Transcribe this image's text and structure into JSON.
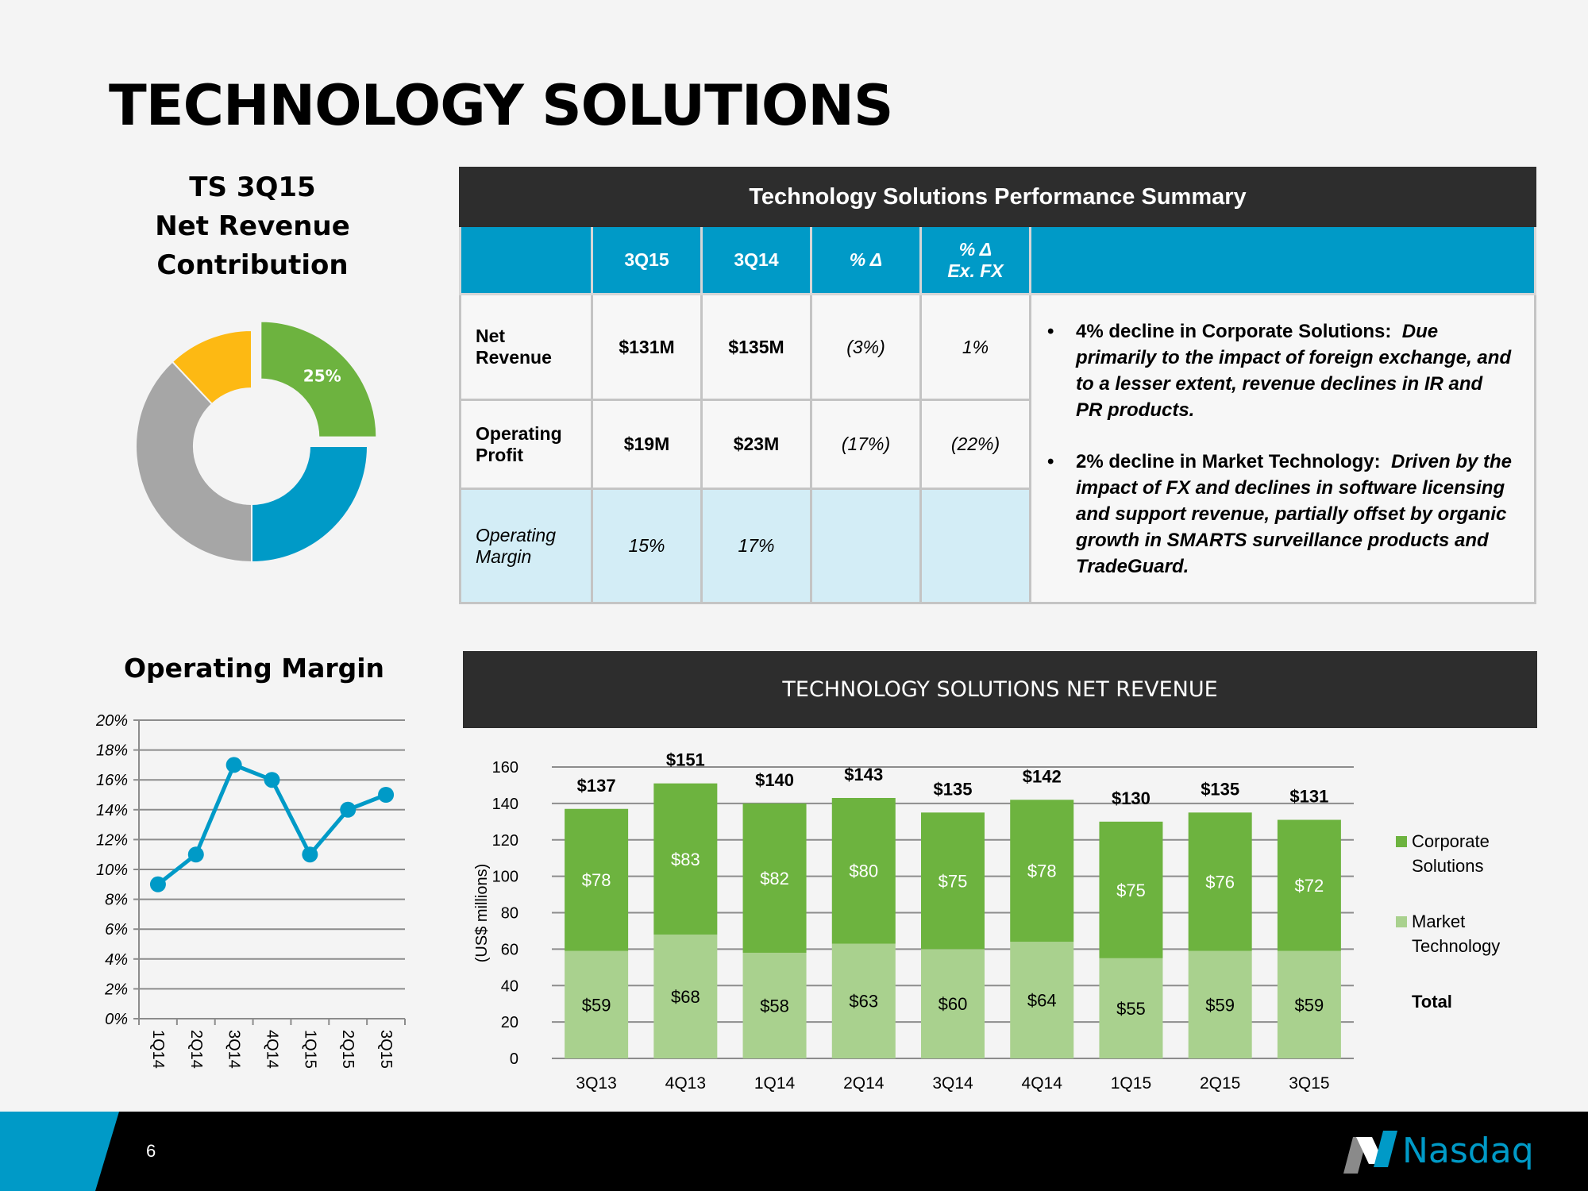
{
  "slide": {
    "title": "TECHNOLOGY SOLUTIONS",
    "page_number": "6",
    "brand": "Nasdaq"
  },
  "donut": {
    "title_lines": [
      "TS 3Q15",
      "Net Revenue",
      "Contribution"
    ]
  },
  "operating_margin": {
    "title": "Operating Margin"
  },
  "table": {
    "title": "Technology Solutions Performance Summary",
    "headers": {
      "c1": "3Q15",
      "c2": "3Q14",
      "c3": "% Δ",
      "c4a": "% Δ",
      "c4b": "Ex. FX"
    },
    "rows": [
      {
        "label_a": "Net",
        "label_b": "Revenue",
        "v1": "$131M",
        "v2": "$135M",
        "v3": "(3%)",
        "v4": "1%"
      },
      {
        "label_a": "Operating",
        "label_b": "Profit",
        "v1": "$19M",
        "v2": "$23M",
        "v3": "(17%)",
        "v4": "(22%)"
      },
      {
        "label_a": "Operating",
        "label_b": "Margin",
        "v1": "15%",
        "v2": "17%",
        "v3": "",
        "v4": ""
      }
    ],
    "commentary": [
      {
        "bullet": "•",
        "head": "4% decline in Corporate Solutions:",
        "text": "Due primarily to the impact of foreign exchange, and to a lesser extent, revenue declines in IR and PR products."
      },
      {
        "bullet": "•",
        "head": "2% decline in Market Technology:",
        "text": "Driven by the impact of FX and declines in software licensing and support revenue, partially offset by organic growth in SMARTS surveillance products and TradeGuard."
      }
    ]
  },
  "revenue_banner": {
    "title": "TECHNOLOGY SOLUTIONS NET REVENUE"
  },
  "colors": {
    "corporate_solutions": "#6db33f",
    "market_technology": "#a9d18e",
    "blue": "#009ac7",
    "gray": "#a6a6a6",
    "yellow": "#fdb913",
    "dark": "#2d2d2d"
  },
  "chart_data": [
    {
      "type": "pie",
      "title": "TS 3Q15 Net Revenue Contribution",
      "slices": [
        {
          "value": 25,
          "label": "25%",
          "color": "#6db33f"
        },
        {
          "value": 25,
          "label": "",
          "color": "#009ac7"
        },
        {
          "value": 38,
          "label": "",
          "color": "#a6a6a6"
        },
        {
          "value": 12,
          "label": "",
          "color": "#fdb913"
        }
      ]
    },
    {
      "type": "line",
      "title": "Operating Margin",
      "categories": [
        "1Q14",
        "2Q14",
        "3Q14",
        "4Q14",
        "1Q15",
        "2Q15",
        "3Q15"
      ],
      "values": [
        9,
        11,
        17,
        16,
        11,
        14,
        15
      ],
      "ylim": [
        0,
        20
      ],
      "yticks": [
        "0%",
        "2%",
        "4%",
        "6%",
        "8%",
        "10%",
        "12%",
        "14%",
        "16%",
        "18%",
        "20%"
      ],
      "grid": true
    },
    {
      "type": "bar",
      "title": "TECHNOLOGY SOLUTIONS NET REVENUE",
      "ylabel": "(US$ millions)",
      "ylim": [
        0,
        160
      ],
      "yticks": [
        "0",
        "20",
        "40",
        "60",
        "80",
        "100",
        "120",
        "140",
        "160"
      ],
      "categories": [
        "3Q13",
        "4Q13",
        "1Q14",
        "2Q14",
        "3Q14",
        "4Q14",
        "1Q15",
        "2Q15",
        "3Q15"
      ],
      "series": [
        {
          "name": "Market Technology",
          "values": [
            59,
            68,
            58,
            63,
            60,
            64,
            55,
            59,
            59
          ],
          "labels": [
            "$59",
            "$68",
            "$58",
            "$63",
            "$60",
            "$64",
            "$55",
            "$59",
            "$59"
          ]
        },
        {
          "name": "Corporate Solutions",
          "values": [
            78,
            83,
            82,
            80,
            75,
            78,
            75,
            76,
            72
          ],
          "labels": [
            "$78",
            "$83",
            "$82",
            "$80",
            "$75",
            "$78",
            "$75",
            "$76",
            "$72"
          ]
        }
      ],
      "totals": [
        "$137",
        "$151",
        "$140",
        "$143",
        "$135",
        "$142",
        "$130",
        "$135",
        "$131"
      ],
      "legend": [
        "Corporate Solutions",
        "Market Technology",
        "Total"
      ],
      "legend_position": "right",
      "grid": true
    }
  ]
}
